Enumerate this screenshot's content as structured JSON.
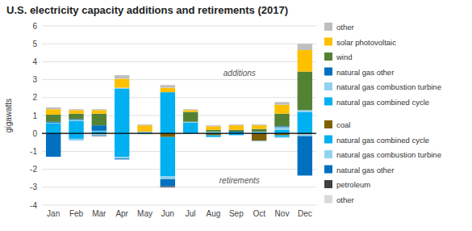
{
  "chart_data": {
    "type": "bar",
    "stacked": true,
    "grid": true,
    "title": "U.S. electricity capacity additions and retirements (2017)",
    "y_label": "gigawatts",
    "annotations": [
      "additions",
      "retirements"
    ],
    "categories": [
      "Jan",
      "Feb",
      "Mar",
      "Apr",
      "May",
      "Jun",
      "Jul",
      "Aug",
      "Sep",
      "Oct",
      "Nov",
      "Dec"
    ],
    "ylim": [
      -4,
      6
    ],
    "yticks": [
      -4,
      -3,
      -2,
      -1,
      0,
      1,
      2,
      3,
      4,
      5,
      6
    ],
    "series": [
      {
        "name": "natural gas combined cycle",
        "color": "#00b0f0",
        "values": [
          0.55,
          0.7,
          0.1,
          2.5,
          0.05,
          2.3,
          0.6,
          0.05,
          0.05,
          0.05,
          0.2,
          1.2
        ]
      },
      {
        "name": "natural gas combustion turbine",
        "color": "#92d2f0",
        "values": [
          0.05,
          0.05,
          0.05,
          0.05,
          0.05,
          0.0,
          0.05,
          0.05,
          0.0,
          0.05,
          0.15,
          0.1
        ]
      },
      {
        "name": "natural gas other",
        "color": "#0070c0",
        "values": [
          0.05,
          0.05,
          0.3,
          0.0,
          0.0,
          0.0,
          0.0,
          0.0,
          0.05,
          0.0,
          0.05,
          0.0
        ]
      },
      {
        "name": "wind",
        "color": "#548235",
        "values": [
          0.4,
          0.3,
          0.65,
          0.0,
          0.0,
          0.0,
          0.55,
          0.1,
          0.1,
          0.15,
          0.7,
          2.15
        ]
      },
      {
        "name": "solar photovoltaic",
        "color": "#ffc000",
        "values": [
          0.3,
          0.2,
          0.2,
          0.5,
          0.35,
          0.25,
          0.1,
          0.2,
          0.25,
          0.2,
          0.5,
          1.2
        ]
      },
      {
        "name": "other",
        "color": "#bfbfbf",
        "values": [
          0.1,
          0.05,
          0.05,
          0.2,
          0.05,
          0.15,
          0.05,
          0.05,
          0.05,
          0.05,
          0.15,
          0.35
        ]
      },
      {
        "name": "coal",
        "color": "#7f6000",
        "values": [
          0.0,
          0.0,
          -0.05,
          0.0,
          0.0,
          -0.2,
          0.0,
          -0.1,
          0.0,
          -0.4,
          -0.1,
          -0.05
        ]
      },
      {
        "name": "natural gas combined cycle",
        "color": "#00b0f0",
        "values": [
          0.0,
          -0.3,
          0.0,
          -1.3,
          0.0,
          -2.2,
          0.0,
          -0.1,
          -0.1,
          0.0,
          -0.1,
          0.0
        ]
      },
      {
        "name": "natural gas combustion turbine",
        "color": "#92d2f0",
        "values": [
          0.0,
          -0.1,
          -0.05,
          -0.1,
          0.0,
          -0.15,
          0.0,
          0.0,
          0.0,
          -0.05,
          -0.05,
          -0.1
        ]
      },
      {
        "name": "natural gas other",
        "color": "#0070c0",
        "values": [
          -1.3,
          0.0,
          -0.05,
          -0.05,
          0.0,
          -0.4,
          0.0,
          0.0,
          0.0,
          0.0,
          0.0,
          -2.2
        ]
      },
      {
        "name": "petroleum",
        "color": "#404040",
        "values": [
          0.0,
          0.0,
          0.0,
          0.0,
          0.0,
          -0.05,
          0.0,
          0.0,
          0.0,
          0.0,
          0.0,
          0.0
        ]
      },
      {
        "name": "other",
        "color": "#d9d9d9",
        "values": [
          0.0,
          0.0,
          -0.05,
          0.0,
          -0.05,
          -0.05,
          0.0,
          0.0,
          0.0,
          0.0,
          0.0,
          0.0
        ]
      }
    ]
  }
}
